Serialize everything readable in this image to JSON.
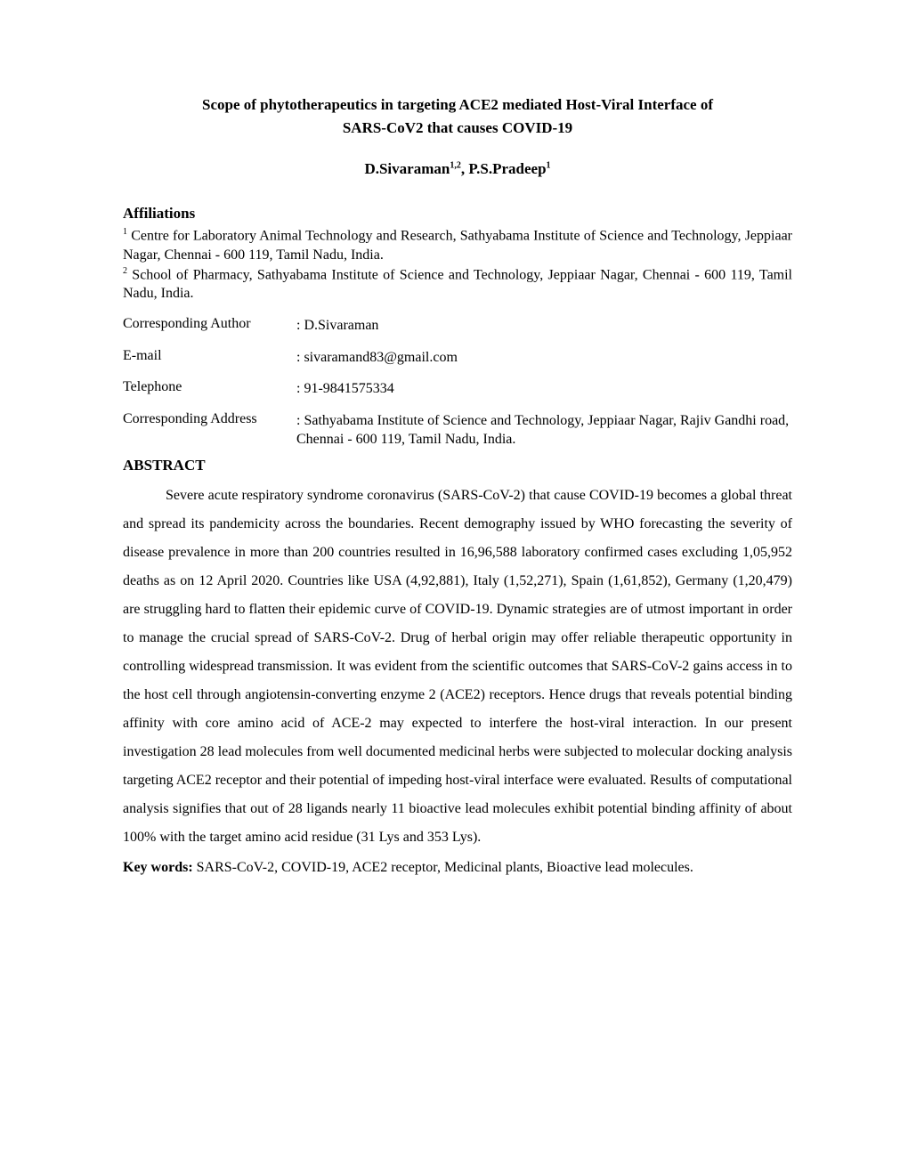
{
  "title_line1": "Scope of phytotherapeutics in targeting ACE2 mediated Host-Viral Interface of",
  "title_line2": "SARS‐CoV2 that causes COVID-19",
  "authors_html": "D.Sivaraman<sup>1,2</sup>, P.S.Pradeep<sup>1</sup>",
  "affiliations_heading": "Affiliations",
  "affiliation_1_sup": "1",
  "affiliation_1_text": " Centre for Laboratory Animal Technology and Research, Sathyabama Institute of Science and Technology, Jeppiaar Nagar, Chennai - 600 119, Tamil Nadu, India.",
  "affiliation_2_sup": "2",
  "affiliation_2_text": " School of Pharmacy, Sathyabama Institute of Science and Technology, Jeppiaar Nagar, Chennai - 600 119, Tamil Nadu, India.",
  "contact": {
    "corresponding_author_label": "Corresponding Author",
    "corresponding_author_value": ": D.Sivaraman",
    "email_label": "E-mail",
    "email_value": ": sivaramand83@gmail.com",
    "telephone_label": "Telephone",
    "telephone_value": ": 91-9841575334",
    "address_label": "Corresponding Address",
    "address_value": ": Sathyabama Institute of Science and Technology, Jeppiaar Nagar, Rajiv Gandhi road, Chennai - 600 119, Tamil Nadu, India."
  },
  "abstract_heading": "ABSTRACT",
  "abstract_body": "Severe acute respiratory syndrome coronavirus (SARS-CoV-2) that cause COVID-19 becomes a global threat and spread its pandemicity across the boundaries. Recent demography issued by WHO forecasting the severity of disease prevalence in more than 200 countries resulted in 16,96,588 laboratory confirmed cases excluding 1,05,952 deaths as on 12 April 2020. Countries like USA (4,92,881), Italy (1,52,271), Spain (1,61,852), Germany (1,20,479) are struggling hard to flatten their epidemic curve of COVID-19. Dynamic strategies are of utmost important in order to manage the crucial spread of SARS-CoV-2. Drug of herbal origin may offer reliable therapeutic opportunity in controlling widespread transmission. It was evident from the scientific outcomes that SARS‐CoV-2 gains access in to the host cell through angiotensin-converting enzyme 2 (ACE2) receptors. Hence drugs that reveals potential binding affinity with core amino acid of ACE-2 may expected to interfere the host-viral interaction. In our present investigation 28 lead molecules from well documented medicinal herbs were subjected to molecular docking analysis targeting ACE2 receptor and their potential of impeding host-viral interface were evaluated. Results of computational analysis signifies that out of 28 ligands nearly 11 bioactive lead molecules exhibit potential binding affinity of about 100% with the target amino acid residue (31 Lys and 353 Lys).",
  "keywords_label": "Key words:",
  "keywords_value": " SARS-CoV-2, COVID-19, ACE2 receptor, Medicinal plants, Bioactive lead molecules."
}
